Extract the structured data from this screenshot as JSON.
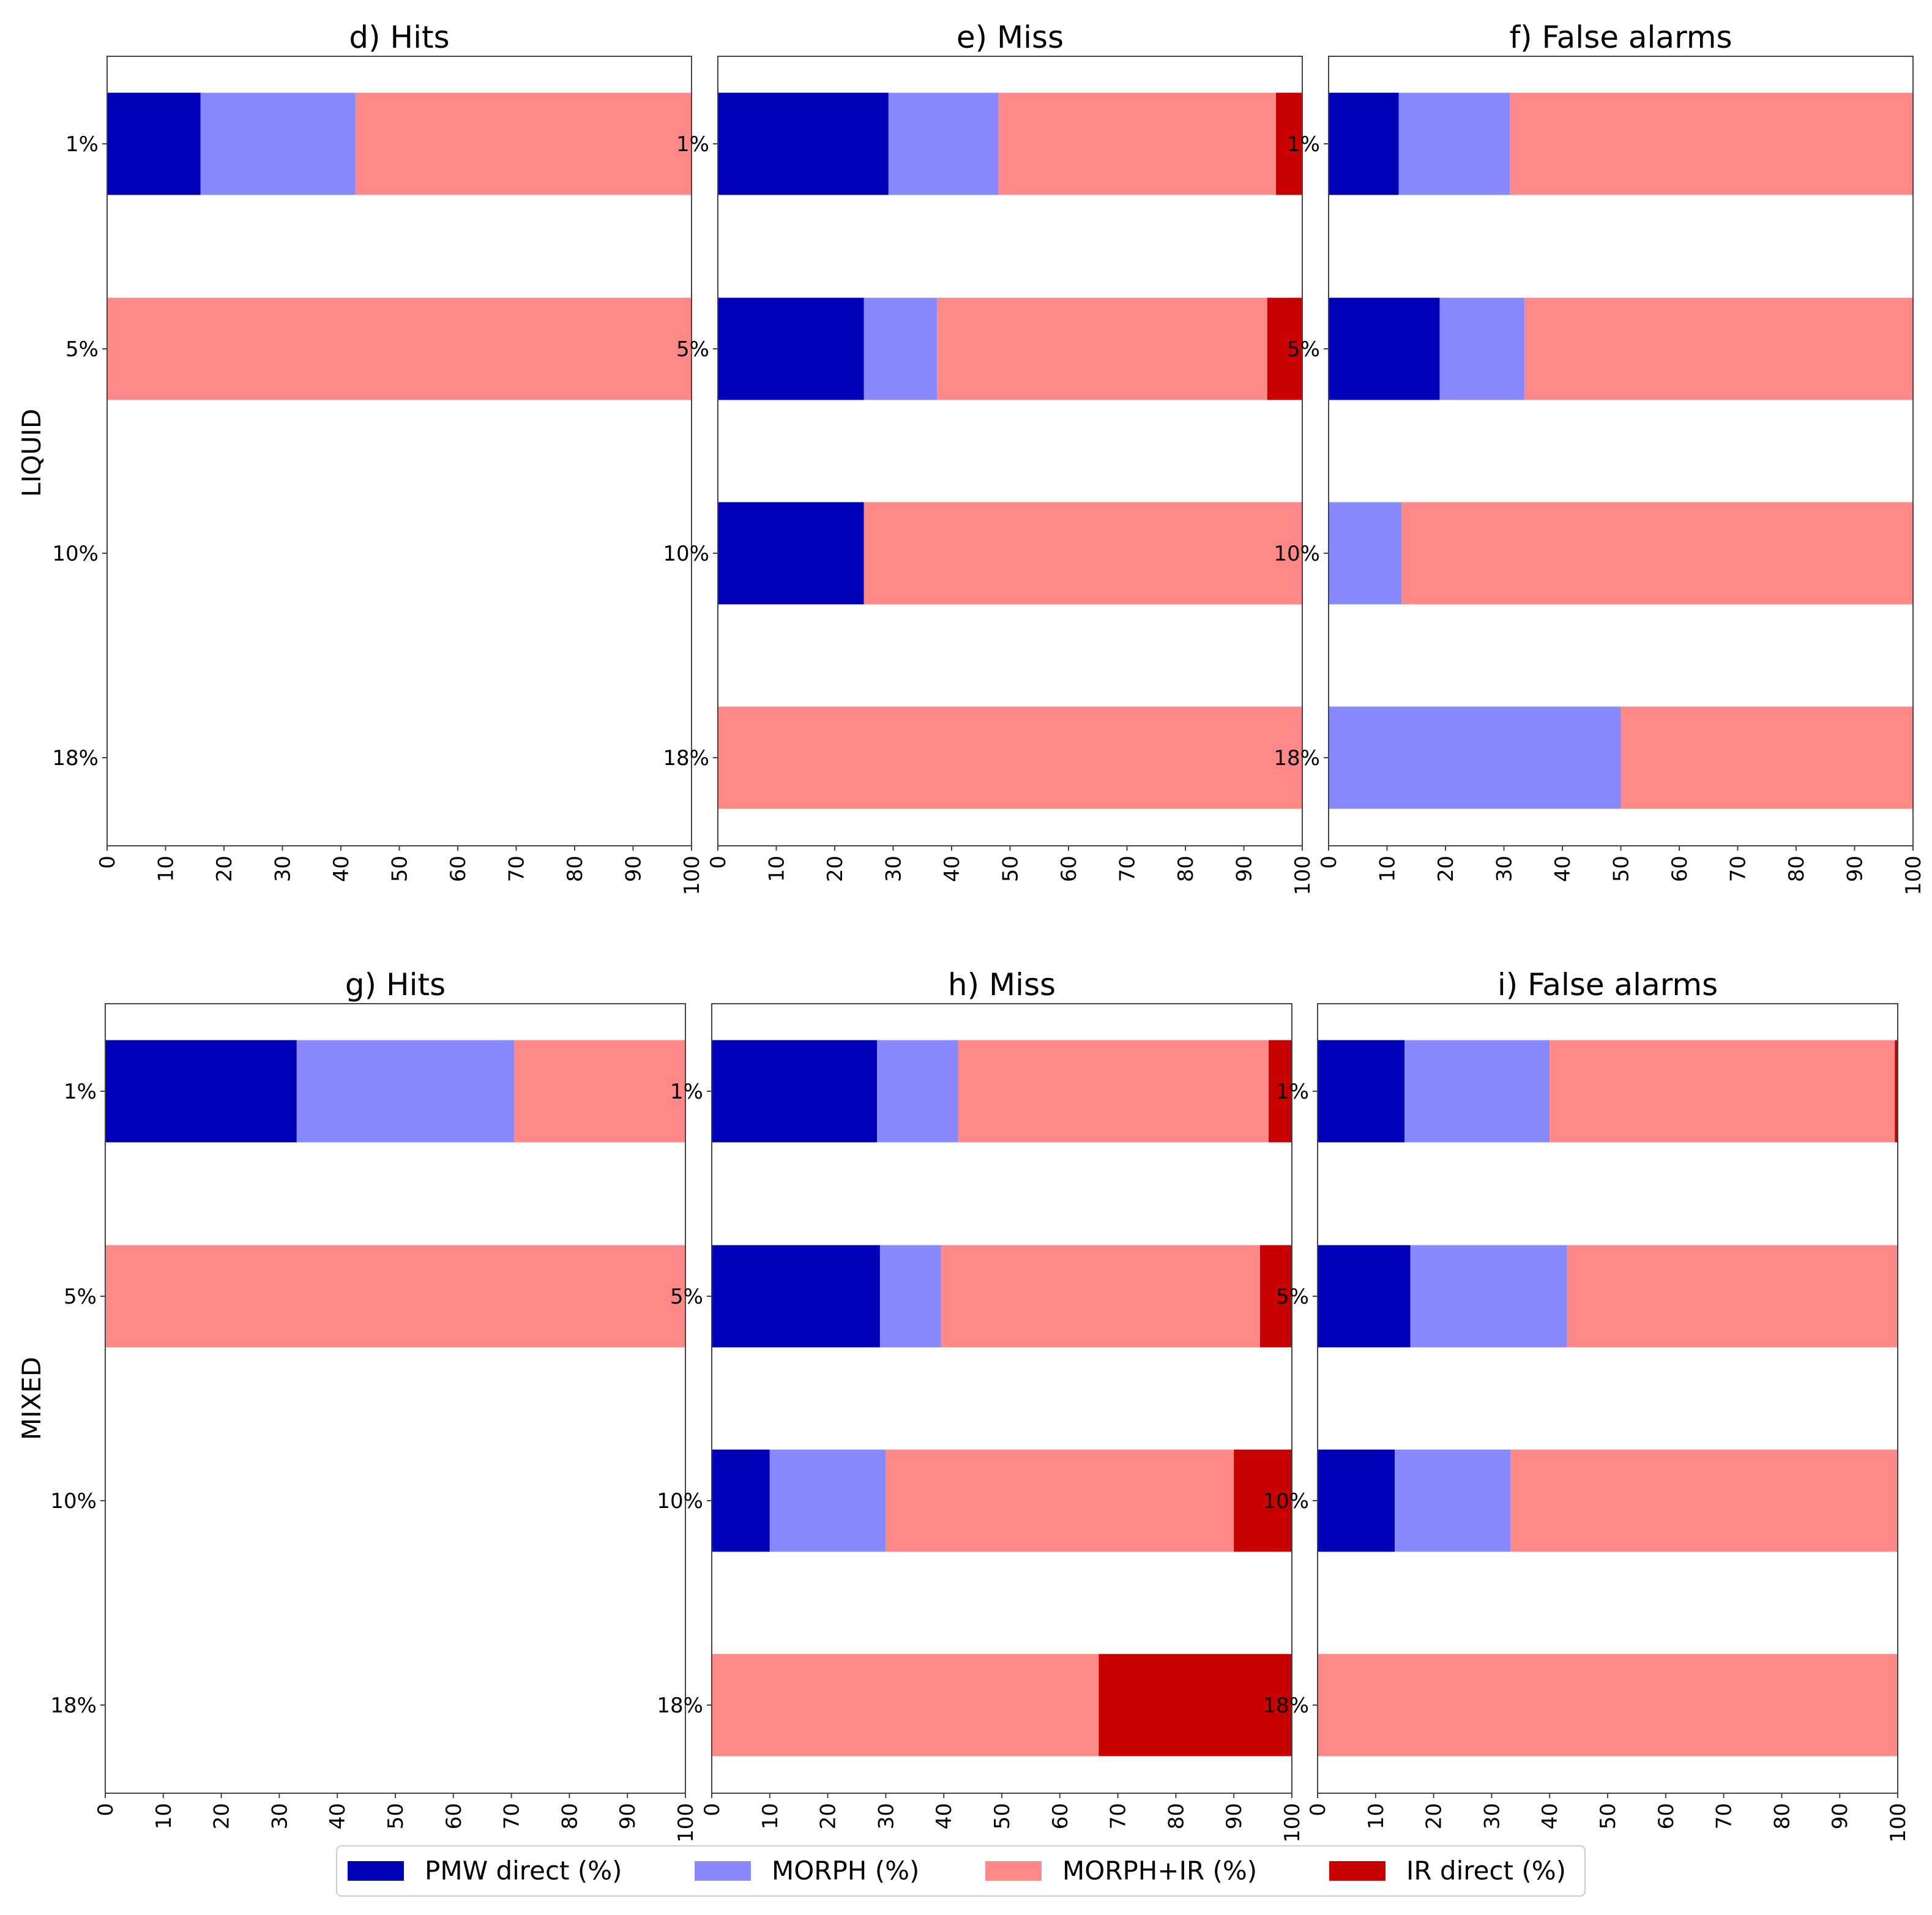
{
  "colors": {
    "pmw_direct": "#0000b8",
    "morph": "#8888ff",
    "morph_ir": "#ff8888",
    "ir_direct": "#c80000",
    "axis": "#444444",
    "text": "#000000"
  },
  "row_labels": [
    "LIQUID",
    "MIXED"
  ],
  "chart_data": [
    {
      "type": "bar",
      "orientation": "horizontal",
      "stacked": true,
      "title": "d) Hits",
      "group": "LIQUID",
      "categories": [
        "1%",
        "5%",
        "10%",
        "18%"
      ],
      "xlim": [
        0,
        100
      ],
      "xticks": [
        "0",
        "10",
        "20",
        "30",
        "40",
        "50",
        "60",
        "70",
        "80",
        "90",
        "100"
      ],
      "series": [
        {
          "name": "PMW direct (%)",
          "values": [
            16,
            0,
            0,
            0
          ]
        },
        {
          "name": "MORPH (%)",
          "values": [
            26.5,
            0,
            0,
            0
          ]
        },
        {
          "name": "MORPH+IR (%)",
          "values": [
            57.5,
            100,
            0,
            0
          ]
        },
        {
          "name": "IR direct (%)",
          "values": [
            0,
            0,
            0,
            0
          ]
        }
      ]
    },
    {
      "type": "bar",
      "orientation": "horizontal",
      "stacked": true,
      "title": "e) Miss",
      "group": "LIQUID",
      "categories": [
        "1%",
        "5%",
        "10%",
        "18%"
      ],
      "xlim": [
        0,
        100
      ],
      "xticks": [
        "0",
        "10",
        "20",
        "30",
        "40",
        "50",
        "60",
        "70",
        "80",
        "90",
        "100"
      ],
      "series": [
        {
          "name": "PMW direct (%)",
          "values": [
            29.2,
            25,
            25,
            0
          ]
        },
        {
          "name": "MORPH (%)",
          "values": [
            18.8,
            12.5,
            0,
            0
          ]
        },
        {
          "name": "MORPH+IR (%)",
          "values": [
            47.5,
            56.5,
            75,
            100
          ]
        },
        {
          "name": "IR direct (%)",
          "values": [
            4.5,
            6,
            0,
            0
          ]
        }
      ]
    },
    {
      "type": "bar",
      "orientation": "horizontal",
      "stacked": true,
      "title": "f) False alarms",
      "group": "LIQUID",
      "categories": [
        "1%",
        "5%",
        "10%",
        "18%"
      ],
      "xlim": [
        0,
        100
      ],
      "xticks": [
        "0",
        "10",
        "20",
        "30",
        "40",
        "50",
        "60",
        "70",
        "80",
        "90",
        "100"
      ],
      "series": [
        {
          "name": "PMW direct (%)",
          "values": [
            12,
            19,
            0,
            0
          ]
        },
        {
          "name": "MORPH (%)",
          "values": [
            19,
            14.5,
            12.5,
            50
          ]
        },
        {
          "name": "MORPH+IR (%)",
          "values": [
            69,
            66.5,
            87.5,
            50
          ]
        },
        {
          "name": "IR direct (%)",
          "values": [
            0,
            0,
            0,
            0
          ]
        }
      ]
    },
    {
      "type": "bar",
      "orientation": "horizontal",
      "stacked": true,
      "title": "g) Hits",
      "group": "MIXED",
      "categories": [
        "1%",
        "5%",
        "10%",
        "18%"
      ],
      "xlim": [
        0,
        100
      ],
      "xticks": [
        "0",
        "10",
        "20",
        "30",
        "40",
        "50",
        "60",
        "70",
        "80",
        "90",
        "100"
      ],
      "series": [
        {
          "name": "PMW direct (%)",
          "values": [
            33,
            0,
            0,
            0
          ]
        },
        {
          "name": "MORPH (%)",
          "values": [
            37.5,
            0,
            0,
            0
          ]
        },
        {
          "name": "MORPH+IR (%)",
          "values": [
            29.5,
            100,
            0,
            0
          ]
        },
        {
          "name": "IR direct (%)",
          "values": [
            0,
            0,
            0,
            0
          ]
        }
      ]
    },
    {
      "type": "bar",
      "orientation": "horizontal",
      "stacked": true,
      "title": "h) Miss",
      "group": "MIXED",
      "categories": [
        "1%",
        "5%",
        "10%",
        "18%"
      ],
      "xlim": [
        0,
        100
      ],
      "xticks": [
        "0",
        "10",
        "20",
        "30",
        "40",
        "50",
        "60",
        "70",
        "80",
        "90",
        "100"
      ],
      "series": [
        {
          "name": "PMW direct (%)",
          "values": [
            28.5,
            29,
            10,
            0
          ]
        },
        {
          "name": "MORPH (%)",
          "values": [
            14,
            10.5,
            20,
            0
          ]
        },
        {
          "name": "MORPH+IR (%)",
          "values": [
            53.5,
            55,
            60,
            66.7
          ]
        },
        {
          "name": "IR direct (%)",
          "values": [
            4,
            5.5,
            10,
            33.3
          ]
        }
      ]
    },
    {
      "type": "bar",
      "orientation": "horizontal",
      "stacked": true,
      "title": "i) False alarms",
      "group": "MIXED",
      "categories": [
        "1%",
        "5%",
        "10%",
        "18%"
      ],
      "xlim": [
        0,
        100
      ],
      "xticks": [
        "0",
        "10",
        "20",
        "30",
        "40",
        "50",
        "60",
        "70",
        "80",
        "90",
        "100"
      ],
      "series": [
        {
          "name": "PMW direct (%)",
          "values": [
            15,
            16,
            13.3,
            0
          ]
        },
        {
          "name": "MORPH (%)",
          "values": [
            25,
            27,
            20,
            0
          ]
        },
        {
          "name": "MORPH+IR (%)",
          "values": [
            59.5,
            57,
            66.7,
            100
          ]
        },
        {
          "name": "IR direct (%)",
          "values": [
            0.5,
            0,
            0,
            0
          ]
        }
      ]
    }
  ],
  "legend": {
    "placement": "bottom-center",
    "entries": [
      {
        "label": "PMW direct (%)",
        "color_key": "pmw_direct"
      },
      {
        "label": "MORPH (%)",
        "color_key": "morph"
      },
      {
        "label": "MORPH+IR (%)",
        "color_key": "morph_ir"
      },
      {
        "label": "IR direct (%)",
        "color_key": "ir_direct"
      }
    ]
  }
}
